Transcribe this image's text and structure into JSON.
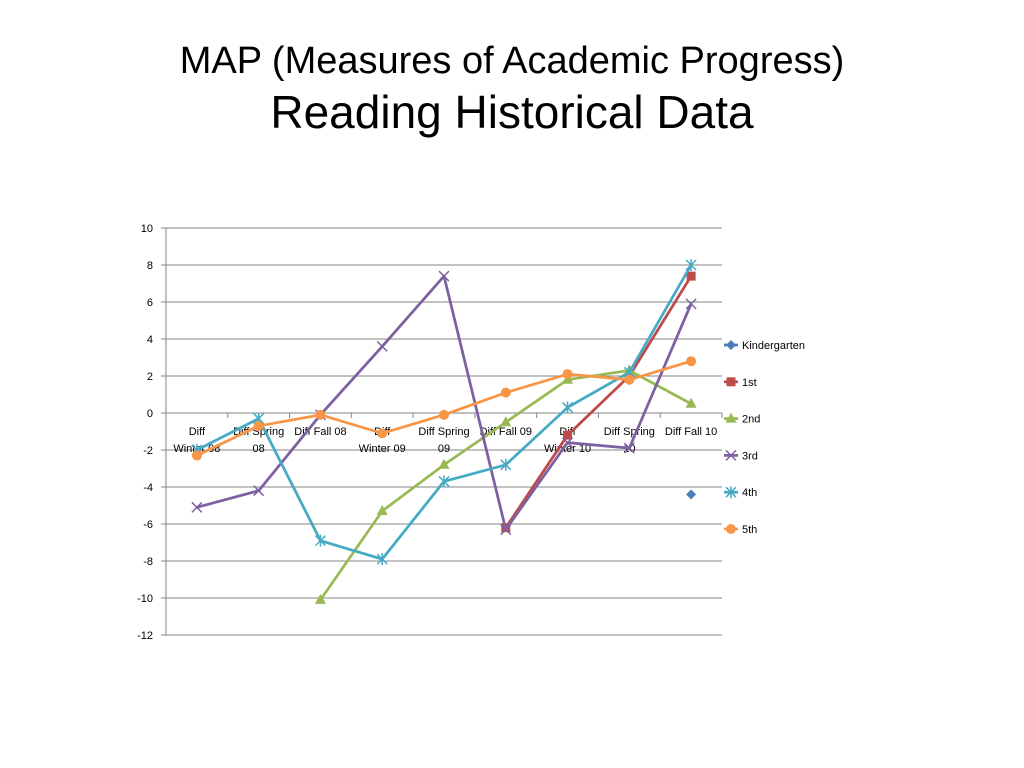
{
  "slide": {
    "title_line1": "MAP (Measures of Academic Progress)",
    "title_line2": "Reading Historical Data"
  },
  "chart_data": {
    "type": "line",
    "categories": [
      [
        "Diff",
        "Winter 08"
      ],
      [
        "Diff Spring",
        "08"
      ],
      [
        "Diff Fall 08"
      ],
      [
        "Diff",
        "Winter 09"
      ],
      [
        "Diff Spring",
        "09"
      ],
      [
        "Diff Fall 09"
      ],
      [
        "Diff",
        "Winter 10"
      ],
      [
        "Diff Spring",
        "10"
      ],
      [
        "Diff Fall 10"
      ]
    ],
    "ylim": [
      -12,
      10
    ],
    "yticks": [
      10,
      8,
      6,
      4,
      2,
      0,
      -2,
      -4,
      -6,
      -8,
      -10,
      -12
    ],
    "grid": true,
    "legend_position": "right",
    "series": [
      {
        "name": "Kindergarten",
        "color": "#4A7EBB",
        "marker": "diamond",
        "values": [
          null,
          null,
          null,
          null,
          null,
          null,
          null,
          null,
          -4.4
        ]
      },
      {
        "name": "1st",
        "color": "#BE4B48",
        "marker": "square",
        "values": [
          null,
          null,
          null,
          null,
          null,
          -6.2,
          -1.2,
          2.0,
          7.4
        ]
      },
      {
        "name": "2nd",
        "color": "#98B954",
        "marker": "triangle",
        "values": [
          null,
          null,
          -10.1,
          -5.3,
          -2.8,
          -0.5,
          1.8,
          2.3,
          0.5
        ]
      },
      {
        "name": "3rd",
        "color": "#7D60A0",
        "marker": "x",
        "values": [
          -5.1,
          -4.2,
          -0.1,
          3.6,
          7.4,
          -6.3,
          -1.6,
          -1.9,
          5.9
        ]
      },
      {
        "name": "4th",
        "color": "#46AAC5",
        "marker": "star",
        "values": [
          -2.0,
          -0.3,
          -6.9,
          -7.9,
          -3.7,
          -2.8,
          0.3,
          2.2,
          8.0
        ]
      },
      {
        "name": "5th",
        "color": "#F79646",
        "marker": "circle",
        "values": [
          -2.3,
          -0.7,
          -0.1,
          -1.1,
          -0.1,
          1.1,
          2.1,
          1.8,
          2.8
        ]
      }
    ]
  }
}
